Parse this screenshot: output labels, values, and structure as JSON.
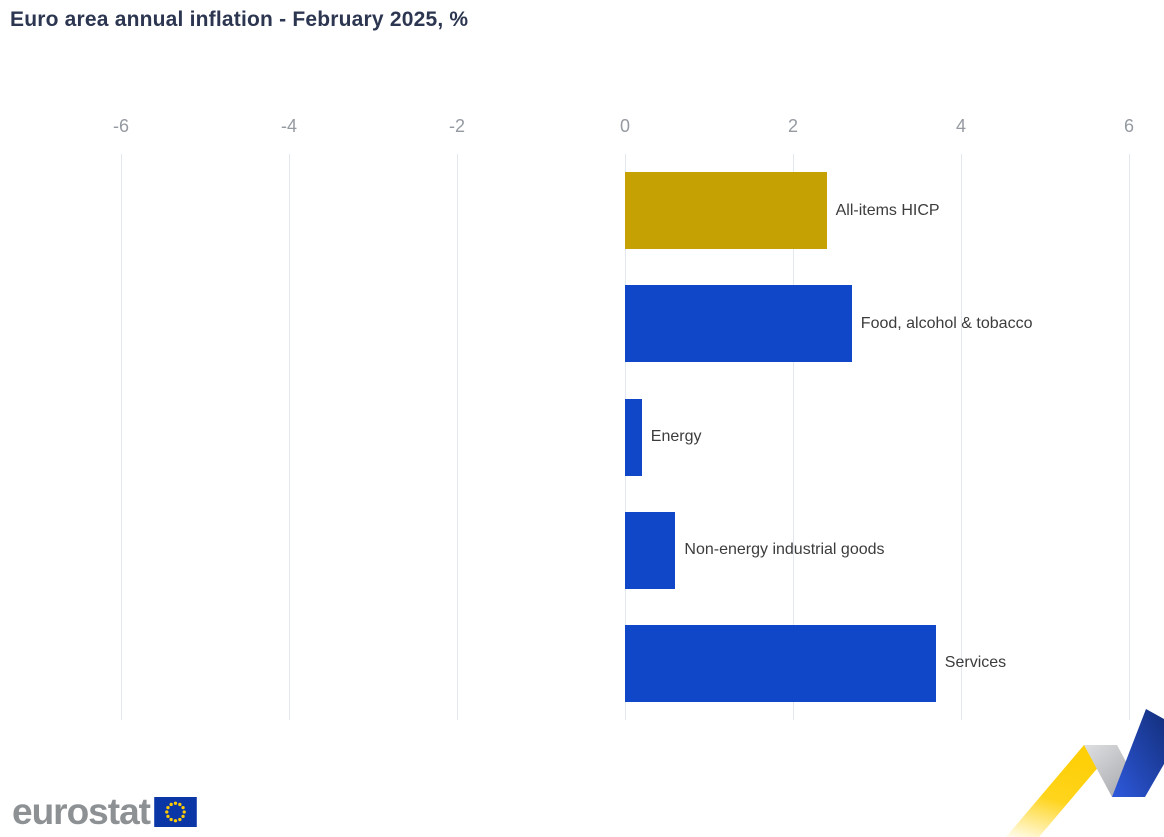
{
  "title": "Euro area annual inflation - February 2025, %",
  "chart_data": {
    "type": "bar",
    "orientation": "horizontal",
    "title": "Euro area annual inflation - February 2025, %",
    "categories": [
      "All-items HICP",
      "Food, alcohol & tobacco",
      "Energy",
      "Non-energy industrial goods",
      "Services"
    ],
    "values": [
      2.4,
      2.7,
      0.2,
      0.6,
      3.7
    ],
    "unit": "%",
    "bar_colors": [
      "#c6a104",
      "#0f47c8",
      "#0f47c8",
      "#0f47c8",
      "#0f47c8"
    ],
    "xlabel": "",
    "ylabel": "",
    "xlim": [
      -6,
      6
    ],
    "x_ticks": [
      -6,
      -4,
      -2,
      0,
      2,
      4,
      6
    ],
    "grid": "vertical-only",
    "legend": "none",
    "value_labels": "none"
  },
  "footer": {
    "logo_text": "eurostat"
  },
  "colors": {
    "title": "#2c3650",
    "tick_label": "#959aa1",
    "category_label": "#3c3c3c",
    "grid": "#e2e8ef",
    "gold": "#c6a104",
    "blue": "#0f47c8",
    "logo_gray": "#8e9194",
    "flag_blue": "#0b37a6",
    "star_yellow": "#ffcc00",
    "ribbon_yellow": "#ffd41c",
    "ribbon_gray": "#b9bbbe",
    "ribbon_blue": "#2049c2"
  }
}
